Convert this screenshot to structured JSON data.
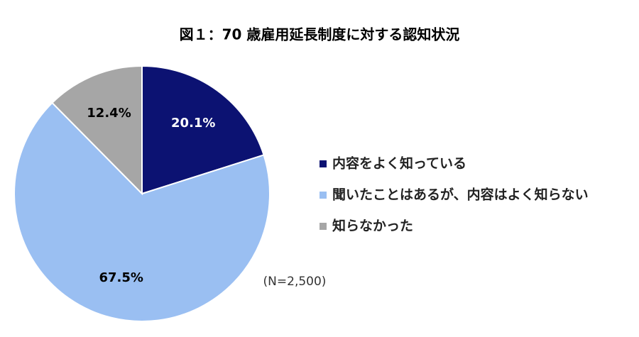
{
  "chart_data": {
    "type": "pie",
    "title": "図１：70 歳雇用延長制度に対する認知状況",
    "annotation": "(N=2,500)",
    "categories": [
      "内容をよく知っている",
      "聞いたことはあるが、内容はよく知らない",
      "知らなかった"
    ],
    "values": [
      20.1,
      67.5,
      12.4
    ],
    "value_labels": [
      "20.1%",
      "67.5%",
      "12.4%"
    ],
    "colors": [
      "#0c1272",
      "#9abff2",
      "#a6a6a6"
    ],
    "legend": "right"
  }
}
